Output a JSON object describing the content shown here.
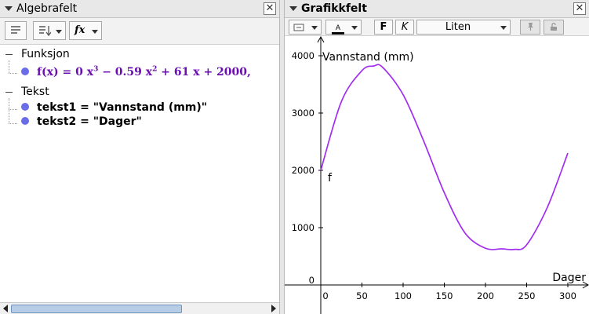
{
  "algebra": {
    "title": "Algebrafelt",
    "close_glyph": "✕",
    "toolbar": {
      "fx_label": "fx"
    },
    "categories": [
      {
        "name": "Funksjon",
        "items": [
          {
            "pre": "f(x) = 0 x",
            "sup1": "3",
            "mid": " − 0.59 x",
            "sup2": "2",
            "post": " + 61 x + 2000,"
          }
        ]
      },
      {
        "name": "Tekst",
        "items": [
          {
            "text": "tekst1 = \"Vannstand (mm)\""
          },
          {
            "text": "tekst2 = \"Dager\""
          }
        ]
      }
    ]
  },
  "graphics": {
    "title": "Grafikkfelt",
    "close_glyph": "✕",
    "toolbar": {
      "text_color_letter": "A",
      "bold_label": "F",
      "italic_label": "K",
      "size_label": "Liten"
    },
    "colors": {
      "curve": "#a12cf0",
      "dot": "#6b6ce8"
    }
  },
  "chart_data": {
    "type": "line",
    "function_label": "f",
    "xlabel": "Dager",
    "ylabel": "Vannstand (mm)",
    "xlim": [
      -5,
      325
    ],
    "ylim": [
      -100,
      4100
    ],
    "x_ticks": [
      0,
      50,
      100,
      150,
      200,
      250,
      300
    ],
    "y_ticks": [
      0,
      1000,
      2000,
      3000,
      4000
    ],
    "grid": false,
    "series": [
      {
        "x": [
          0,
          25,
          50,
          64,
          75,
          100,
          125,
          150,
          175,
          200,
          220,
          235,
          250,
          275,
          300
        ],
        "y": [
          2000,
          3200,
          3740,
          3820,
          3800,
          3320,
          2510,
          1610,
          910,
          640,
          630,
          620,
          700,
          1350,
          2300
        ]
      }
    ]
  }
}
